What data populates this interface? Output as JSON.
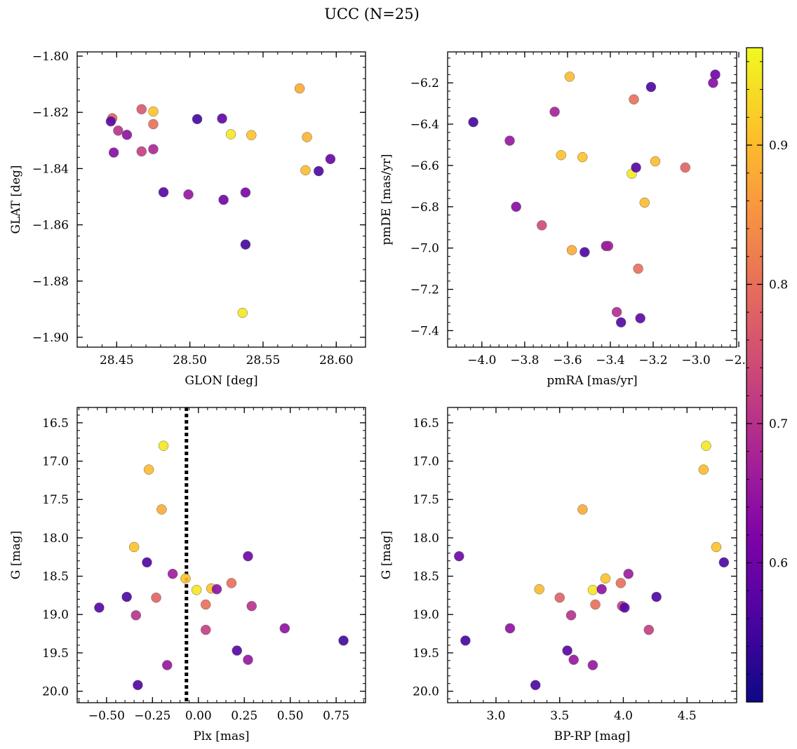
{
  "figure": {
    "title": "UCC (N=25)"
  },
  "chart_data": [
    {
      "type": "scatter",
      "xlabel": "GLON [deg]",
      "ylabel": "GLAT [deg]",
      "xlim": [
        28.423,
        28.62
      ],
      "ylim": [
        -1.9035,
        -1.7985
      ],
      "xticks": [
        28.45,
        28.5,
        28.55,
        28.6
      ],
      "xtick_labels": [
        "28.45",
        "28.50",
        "28.55",
        "28.60"
      ],
      "yticks": [
        -1.8,
        -1.82,
        -1.84,
        -1.86,
        -1.88,
        -1.9
      ],
      "ytick_labels": [
        "−1.80",
        "−1.82",
        "−1.84",
        "−1.86",
        "−1.88",
        "−1.90"
      ],
      "points": [
        {
          "x": 28.447,
          "y": -1.8221,
          "c": 0.78
        },
        {
          "x": 28.446,
          "y": -1.8232,
          "c": 0.58
        },
        {
          "x": 28.451,
          "y": -1.8265,
          "c": 0.7
        },
        {
          "x": 28.457,
          "y": -1.828,
          "c": 0.64
        },
        {
          "x": 28.448,
          "y": -1.8343,
          "c": 0.63
        },
        {
          "x": 28.467,
          "y": -1.8189,
          "c": 0.76
        },
        {
          "x": 28.475,
          "y": -1.8197,
          "c": 0.91
        },
        {
          "x": 28.475,
          "y": -1.8242,
          "c": 0.8
        },
        {
          "x": 28.467,
          "y": -1.8339,
          "c": 0.72
        },
        {
          "x": 28.475,
          "y": -1.8331,
          "c": 0.68
        },
        {
          "x": 28.482,
          "y": -1.8484,
          "c": 0.57
        },
        {
          "x": 28.499,
          "y": -1.8492,
          "c": 0.65
        },
        {
          "x": 28.505,
          "y": -1.8224,
          "c": 0.55
        },
        {
          "x": 28.522,
          "y": -1.8222,
          "c": 0.58
        },
        {
          "x": 28.523,
          "y": -1.8511,
          "c": 0.6
        },
        {
          "x": 28.528,
          "y": -1.8278,
          "c": 0.95
        },
        {
          "x": 28.542,
          "y": -1.8281,
          "c": 0.91
        },
        {
          "x": 28.538,
          "y": -1.8485,
          "c": 0.61
        },
        {
          "x": 28.538,
          "y": -1.867,
          "c": 0.55
        },
        {
          "x": 28.536,
          "y": -1.8913,
          "c": 0.95
        },
        {
          "x": 28.575,
          "y": -1.8115,
          "c": 0.88
        },
        {
          "x": 28.58,
          "y": -1.8288,
          "c": 0.89
        },
        {
          "x": 28.579,
          "y": -1.8406,
          "c": 0.9
        },
        {
          "x": 28.588,
          "y": -1.8409,
          "c": 0.56
        },
        {
          "x": 28.596,
          "y": -1.8366,
          "c": 0.59
        }
      ]
    },
    {
      "type": "scatter",
      "xlabel": "pmRA [mas/yr]",
      "ylabel": "pmDE [mas/yr]",
      "xlim": [
        -4.16,
        -2.81
      ],
      "ylim": [
        -7.48,
        -6.05
      ],
      "xticks": [
        -4.0,
        -3.8,
        -3.6,
        -3.4,
        -3.2,
        -3.0,
        -2.8
      ],
      "xtick_labels": [
        "−4.0",
        "−3.8",
        "−3.6",
        "−3.4",
        "−3.2",
        "−3.0",
        "−2.8"
      ],
      "yticks": [
        -6.2,
        -6.4,
        -6.6,
        -6.8,
        -7.0,
        -7.2,
        -7.4
      ],
      "ytick_labels": [
        "−6.2",
        "−6.4",
        "−6.6",
        "−6.8",
        "−7.0",
        "−7.2",
        "−7.4"
      ],
      "points": [
        {
          "x": -4.04,
          "y": -6.39,
          "c": 0.55
        },
        {
          "x": -3.87,
          "y": -6.48,
          "c": 0.65
        },
        {
          "x": -3.84,
          "y": -6.8,
          "c": 0.63
        },
        {
          "x": -3.72,
          "y": -6.89,
          "c": 0.74
        },
        {
          "x": -3.66,
          "y": -6.34,
          "c": 0.67
        },
        {
          "x": -3.63,
          "y": -6.55,
          "c": 0.91
        },
        {
          "x": -3.59,
          "y": -6.17,
          "c": 0.9
        },
        {
          "x": -3.58,
          "y": -7.01,
          "c": 0.88
        },
        {
          "x": -3.53,
          "y": -6.56,
          "c": 0.91
        },
        {
          "x": -3.52,
          "y": -7.02,
          "c": 0.56
        },
        {
          "x": -3.42,
          "y": -6.99,
          "c": 0.63
        },
        {
          "x": -3.41,
          "y": -6.99,
          "c": 0.67
        },
        {
          "x": -3.37,
          "y": -7.31,
          "c": 0.69
        },
        {
          "x": -3.35,
          "y": -7.36,
          "c": 0.57
        },
        {
          "x": -3.3,
          "y": -6.64,
          "c": 0.95
        },
        {
          "x": -3.29,
          "y": -6.28,
          "c": 0.8
        },
        {
          "x": -3.28,
          "y": -6.61,
          "c": 0.57
        },
        {
          "x": -3.27,
          "y": -7.1,
          "c": 0.8
        },
        {
          "x": -3.26,
          "y": -7.34,
          "c": 0.58
        },
        {
          "x": -3.24,
          "y": -6.78,
          "c": 0.9
        },
        {
          "x": -3.21,
          "y": -6.22,
          "c": 0.56
        },
        {
          "x": -3.19,
          "y": -6.58,
          "c": 0.9
        },
        {
          "x": -3.05,
          "y": -6.61,
          "c": 0.78
        },
        {
          "x": -2.92,
          "y": -6.2,
          "c": 0.63
        },
        {
          "x": -2.91,
          "y": -6.16,
          "c": 0.6
        }
      ]
    },
    {
      "type": "scatter",
      "xlabel": "Plx [mas]",
      "ylabel": "G [mag]",
      "xlim": [
        -0.66,
        0.91
      ],
      "ylim": [
        20.15,
        16.3
      ],
      "xticks": [
        -0.5,
        -0.25,
        0.0,
        0.25,
        0.5,
        0.75
      ],
      "xtick_labels": [
        "−0.50",
        "−0.25",
        "0.00",
        "0.25",
        "0.50",
        "0.75"
      ],
      "yticks": [
        16.5,
        17.0,
        17.5,
        18.0,
        18.5,
        19.0,
        19.5,
        20.0
      ],
      "ytick_labels": [
        "16.5",
        "17.0",
        "17.5",
        "18.0",
        "18.5",
        "19.0",
        "19.5",
        "20.0"
      ],
      "vline": {
        "x": -0.065,
        "style": "dotted"
      },
      "points": [
        {
          "x": -0.19,
          "y": 16.8,
          "c": 0.95
        },
        {
          "x": -0.27,
          "y": 17.11,
          "c": 0.9
        },
        {
          "x": -0.2,
          "y": 17.63,
          "c": 0.88
        },
        {
          "x": -0.35,
          "y": 18.12,
          "c": 0.91
        },
        {
          "x": -0.28,
          "y": 18.32,
          "c": 0.56
        },
        {
          "x": 0.27,
          "y": 18.24,
          "c": 0.6
        },
        {
          "x": -0.14,
          "y": 18.47,
          "c": 0.66
        },
        {
          "x": -0.07,
          "y": 18.53,
          "c": 0.91
        },
        {
          "x": -0.01,
          "y": 18.68,
          "c": 0.95
        },
        {
          "x": 0.07,
          "y": 18.66,
          "c": 0.91
        },
        {
          "x": 0.1,
          "y": 18.67,
          "c": 0.64
        },
        {
          "x": 0.18,
          "y": 18.59,
          "c": 0.8
        },
        {
          "x": -0.39,
          "y": 18.77,
          "c": 0.56
        },
        {
          "x": -0.23,
          "y": 18.78,
          "c": 0.78
        },
        {
          "x": 0.04,
          "y": 18.87,
          "c": 0.8
        },
        {
          "x": -0.54,
          "y": 18.91,
          "c": 0.57
        },
        {
          "x": 0.29,
          "y": 18.89,
          "c": 0.7
        },
        {
          "x": -0.34,
          "y": 19.01,
          "c": 0.7
        },
        {
          "x": 0.04,
          "y": 19.2,
          "c": 0.72
        },
        {
          "x": 0.47,
          "y": 19.18,
          "c": 0.64
        },
        {
          "x": 0.21,
          "y": 19.47,
          "c": 0.57
        },
        {
          "x": 0.27,
          "y": 19.59,
          "c": 0.65
        },
        {
          "x": -0.17,
          "y": 19.66,
          "c": 0.65
        },
        {
          "x": 0.79,
          "y": 19.34,
          "c": 0.55
        },
        {
          "x": -0.33,
          "y": 19.92,
          "c": 0.56
        }
      ]
    },
    {
      "type": "scatter",
      "xlabel": "BP-RP [mag]",
      "ylabel": "G [mag]",
      "xlim": [
        2.62,
        4.89
      ],
      "ylim": [
        20.15,
        16.3
      ],
      "xticks": [
        3.0,
        3.5,
        4.0,
        4.5
      ],
      "xtick_labels": [
        "3.0",
        "3.5",
        "4.0",
        "4.5"
      ],
      "yticks": [
        16.5,
        17.0,
        17.5,
        18.0,
        18.5,
        19.0,
        19.5,
        20.0
      ],
      "ytick_labels": [
        "16.5",
        "17.0",
        "17.5",
        "18.0",
        "18.5",
        "19.0",
        "19.5",
        "20.0"
      ],
      "points": [
        {
          "x": 2.71,
          "y": 18.24,
          "c": 0.6
        },
        {
          "x": 2.76,
          "y": 19.34,
          "c": 0.55
        },
        {
          "x": 3.11,
          "y": 19.18,
          "c": 0.64
        },
        {
          "x": 3.31,
          "y": 19.92,
          "c": 0.56
        },
        {
          "x": 3.34,
          "y": 18.67,
          "c": 0.9
        },
        {
          "x": 3.5,
          "y": 18.78,
          "c": 0.78
        },
        {
          "x": 3.56,
          "y": 19.47,
          "c": 0.57
        },
        {
          "x": 3.59,
          "y": 19.01,
          "c": 0.7
        },
        {
          "x": 3.61,
          "y": 19.59,
          "c": 0.65
        },
        {
          "x": 3.68,
          "y": 17.63,
          "c": 0.88
        },
        {
          "x": 3.76,
          "y": 18.68,
          "c": 0.95
        },
        {
          "x": 3.76,
          "y": 19.66,
          "c": 0.65
        },
        {
          "x": 3.78,
          "y": 18.87,
          "c": 0.8
        },
        {
          "x": 3.83,
          "y": 18.67,
          "c": 0.64
        },
        {
          "x": 3.86,
          "y": 18.53,
          "c": 0.91
        },
        {
          "x": 3.98,
          "y": 18.59,
          "c": 0.8
        },
        {
          "x": 3.99,
          "y": 18.89,
          "c": 0.72
        },
        {
          "x": 4.01,
          "y": 18.91,
          "c": 0.57
        },
        {
          "x": 4.04,
          "y": 18.47,
          "c": 0.66
        },
        {
          "x": 4.2,
          "y": 19.2,
          "c": 0.72
        },
        {
          "x": 4.26,
          "y": 18.77,
          "c": 0.56
        },
        {
          "x": 4.63,
          "y": 17.11,
          "c": 0.9
        },
        {
          "x": 4.65,
          "y": 16.8,
          "c": 0.95
        },
        {
          "x": 4.73,
          "y": 18.12,
          "c": 0.91
        },
        {
          "x": 4.79,
          "y": 18.32,
          "c": 0.56
        }
      ]
    }
  ],
  "colorbar": {
    "cmap": "plasma",
    "range": [
      0.5,
      0.97
    ],
    "ticks": [
      0.6,
      0.7,
      0.8,
      0.9
    ],
    "tick_labels": [
      "0.6",
      "0.7",
      "0.8",
      "0.9"
    ]
  }
}
